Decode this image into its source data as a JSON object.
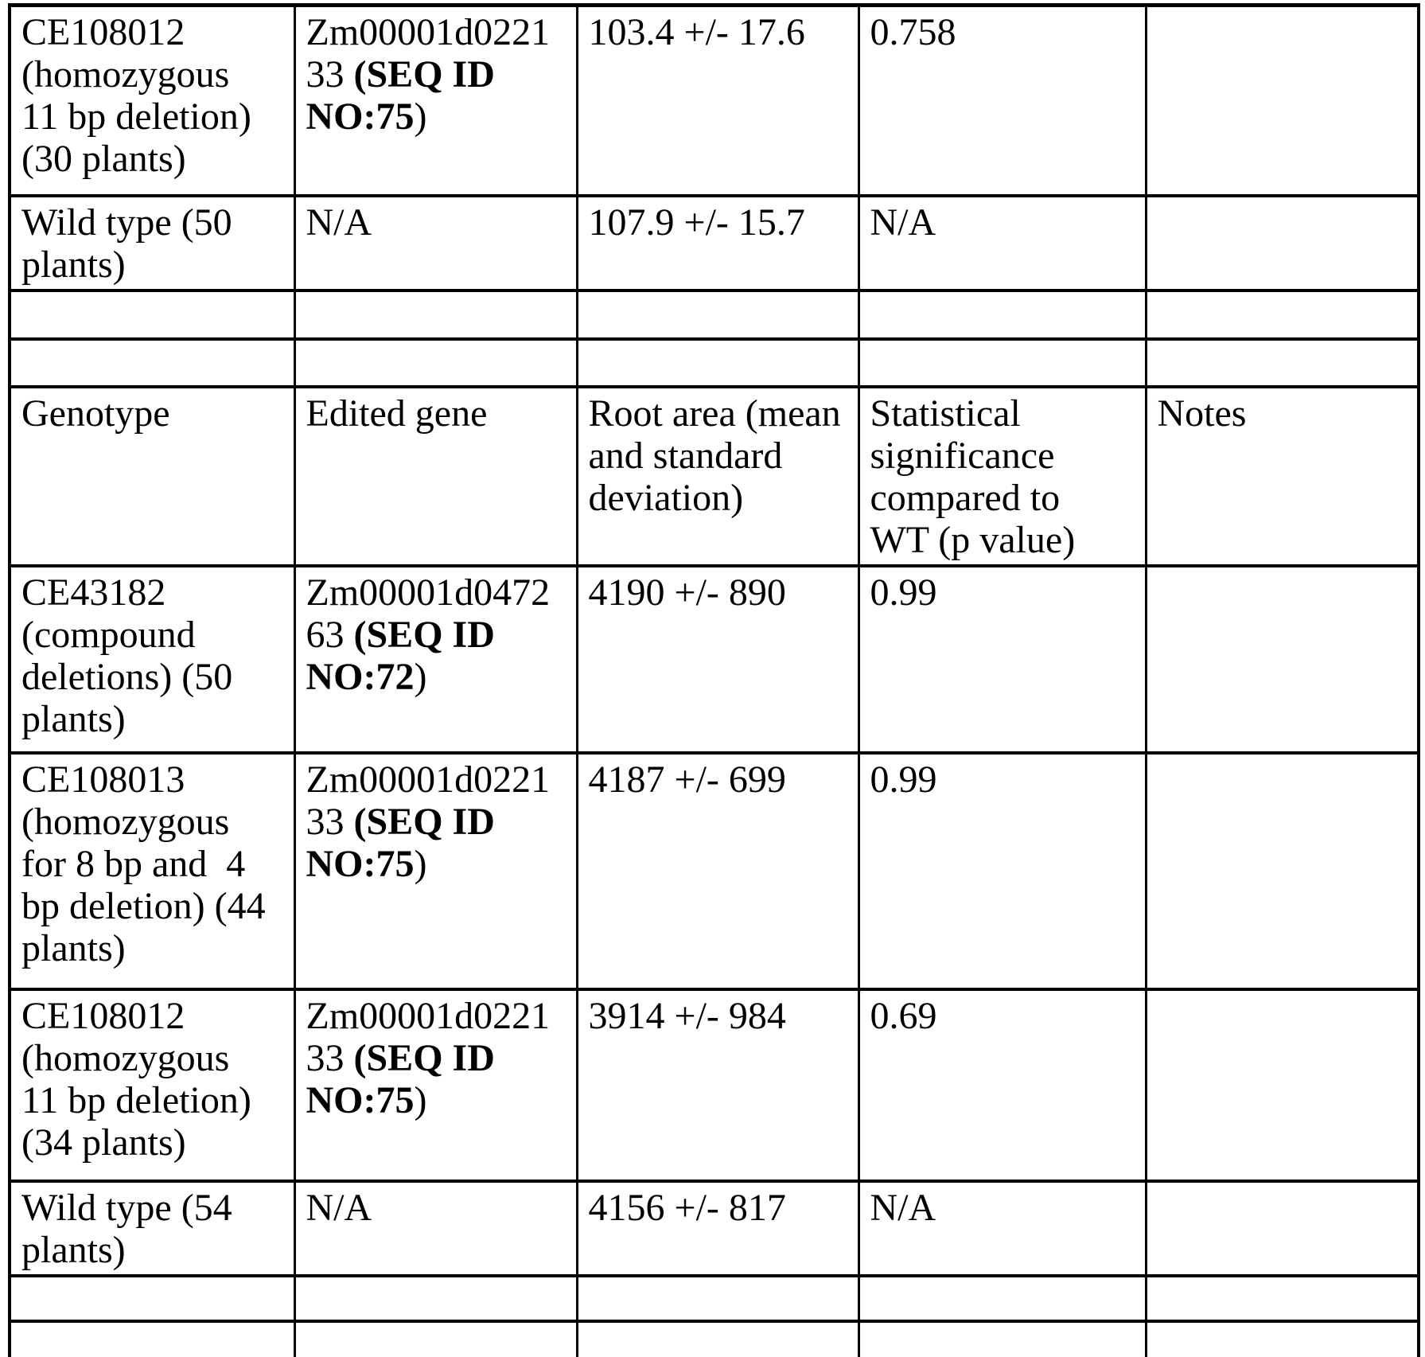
{
  "colors": {
    "ink": "#000000",
    "paper": "#ffffff"
  },
  "table": {
    "rows": [
      {
        "kind": "data",
        "cells": [
          [
            {
              "t": "CE108012\n(homozygous\n11 bp deletion)\n(30 plants)",
              "b": false
            }
          ],
          [
            {
              "t": "Zm00001d0221\n33 ",
              "b": false
            },
            {
              "t": "(SEQ ID\nNO:75",
              "b": true
            },
            {
              "t": ")",
              "b": false
            }
          ],
          [
            {
              "t": "103.4 +/- 17.6",
              "b": false
            }
          ],
          [
            {
              "t": "0.758",
              "b": false
            }
          ],
          []
        ]
      },
      {
        "kind": "data",
        "cells": [
          [
            {
              "t": "Wild type (50\nplants)",
              "b": false
            }
          ],
          [
            {
              "t": "N/A",
              "b": false
            }
          ],
          [
            {
              "t": "107.9 +/- 15.7",
              "b": false
            }
          ],
          [
            {
              "t": "N/A",
              "b": false
            }
          ],
          []
        ]
      },
      {
        "kind": "blank",
        "cells": [
          [],
          [],
          [],
          [],
          []
        ]
      },
      {
        "kind": "blank",
        "cells": [
          [],
          [],
          [],
          [],
          []
        ]
      },
      {
        "kind": "header",
        "cells": [
          [
            {
              "t": "Genotype",
              "b": false
            }
          ],
          [
            {
              "t": "Edited gene",
              "b": false
            }
          ],
          [
            {
              "t": "Root area (mean\nand standard\ndeviation)",
              "b": false
            }
          ],
          [
            {
              "t": "Statistical\nsignificance\ncompared to\nWT (p value)",
              "b": false
            }
          ],
          [
            {
              "t": "Notes",
              "b": false
            }
          ]
        ]
      },
      {
        "kind": "data",
        "cells": [
          [
            {
              "t": "CE43182\n(compound\ndeletions) (50\nplants)",
              "b": false
            }
          ],
          [
            {
              "t": "Zm00001d0472\n63 ",
              "b": false
            },
            {
              "t": "(SEQ ID\nNO:72",
              "b": true
            },
            {
              "t": ")",
              "b": false
            }
          ],
          [
            {
              "t": "4190 +/- 890",
              "b": false
            }
          ],
          [
            {
              "t": "0.99",
              "b": false
            }
          ],
          []
        ]
      },
      {
        "kind": "data",
        "cells": [
          [
            {
              "t": "CE108013\n(homozygous\nfor 8 bp and  4\nbp deletion) (44\nplants)",
              "b": false
            }
          ],
          [
            {
              "t": "Zm00001d0221\n33 ",
              "b": false
            },
            {
              "t": "(SEQ ID\nNO:75",
              "b": true
            },
            {
              "t": ")",
              "b": false
            }
          ],
          [
            {
              "t": "4187 +/- 699",
              "b": false
            }
          ],
          [
            {
              "t": "0.99",
              "b": false
            }
          ],
          []
        ]
      },
      {
        "kind": "data",
        "cells": [
          [
            {
              "t": "CE108012\n(homozygous\n11 bp deletion)\n(34 plants)",
              "b": false
            }
          ],
          [
            {
              "t": "Zm00001d0221\n33 ",
              "b": false
            },
            {
              "t": "(SEQ ID\nNO:75",
              "b": true
            },
            {
              "t": ")",
              "b": false
            }
          ],
          [
            {
              "t": "3914 +/- 984",
              "b": false
            }
          ],
          [
            {
              "t": "0.69",
              "b": false
            }
          ],
          []
        ]
      },
      {
        "kind": "data",
        "cells": [
          [
            {
              "t": "Wild type (54\nplants)",
              "b": false
            }
          ],
          [
            {
              "t": "N/A",
              "b": false
            }
          ],
          [
            {
              "t": "4156 +/- 817",
              "b": false
            }
          ],
          [
            {
              "t": "N/A",
              "b": false
            }
          ],
          []
        ]
      },
      {
        "kind": "blank",
        "cells": [
          [],
          [],
          [],
          [],
          []
        ]
      },
      {
        "kind": "blank",
        "cells": [
          [],
          [],
          [],
          [],
          []
        ]
      }
    ]
  }
}
